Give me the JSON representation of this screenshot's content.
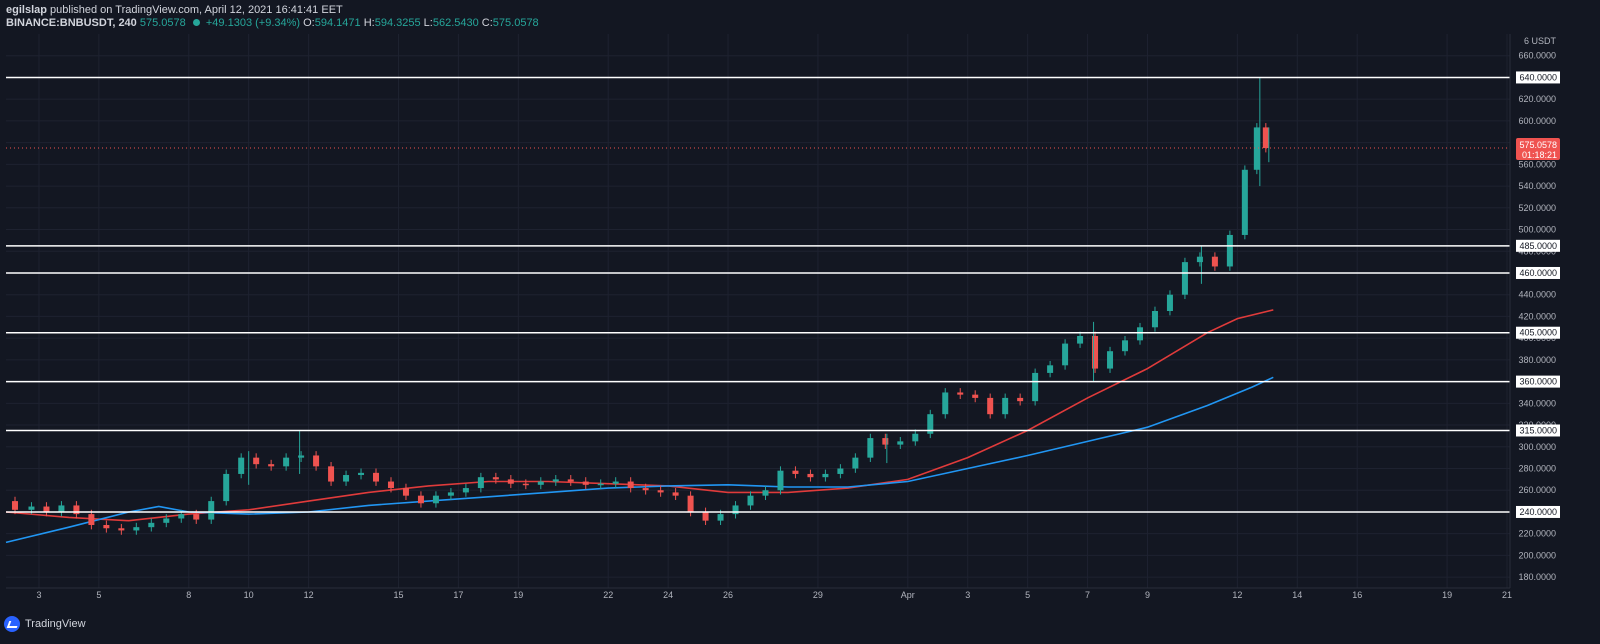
{
  "header": {
    "publisher_user": "egilslap",
    "publisher_text": "published on TradingView.com, April 12, 2021 16:41:41 EET",
    "symbol": "BINANCE:BNBUSDT, 240",
    "last": "575.0578",
    "change": "+49.1303 (+9.34%)",
    "o_label": "O:",
    "o_value": "594.1471",
    "h_label": "H:",
    "h_value": "594.3255",
    "l_label": "L:",
    "l_value": "562.5430",
    "c_label": "C:",
    "c_value": "575.0578"
  },
  "footer": {
    "brand": "TradingView"
  },
  "colors": {
    "background": "#131722",
    "up": "#26a69a",
    "down": "#ef5350",
    "ma_fast": "#e03b3b",
    "ma_slow": "#2196f3",
    "level_line": "#ffffff"
  },
  "chart_data": {
    "type": "candlestick",
    "yaxis_unit_label": "6 USDT",
    "ylim": [
      170,
      680
    ],
    "y_ticks": [
      180,
      200,
      220,
      240,
      260,
      280,
      300,
      320,
      340,
      360,
      380,
      400,
      420,
      440,
      460,
      480,
      500,
      520,
      540,
      560,
      580,
      600,
      620,
      640,
      660
    ],
    "x_ticks": [
      {
        "label": "3",
        "day": 3
      },
      {
        "label": "5",
        "day": 5
      },
      {
        "label": "8",
        "day": 8
      },
      {
        "label": "10",
        "day": 10
      },
      {
        "label": "12",
        "day": 12
      },
      {
        "label": "15",
        "day": 15
      },
      {
        "label": "17",
        "day": 17
      },
      {
        "label": "19",
        "day": 19
      },
      {
        "label": "22",
        "day": 22
      },
      {
        "label": "24",
        "day": 24
      },
      {
        "label": "26",
        "day": 26
      },
      {
        "label": "29",
        "day": 29
      },
      {
        "label": "Apr",
        "day": 32
      },
      {
        "label": "3",
        "day": 34
      },
      {
        "label": "5",
        "day": 36
      },
      {
        "label": "7",
        "day": 38
      },
      {
        "label": "9",
        "day": 40
      },
      {
        "label": "12",
        "day": 43
      },
      {
        "label": "14",
        "day": 45
      },
      {
        "label": "16",
        "day": 47
      },
      {
        "label": "19",
        "day": 50
      },
      {
        "label": "21",
        "day": 52
      }
    ],
    "x_range_days": [
      1.9,
      52.1
    ],
    "levels": [
      {
        "value": 640,
        "label": "640.0000"
      },
      {
        "value": 485,
        "label": "485.0000"
      },
      {
        "value": 460,
        "label": "460.0000"
      },
      {
        "value": 405,
        "label": "405.0000"
      },
      {
        "value": 360,
        "label": "360.0000"
      },
      {
        "value": 315,
        "label": "315.0000"
      },
      {
        "value": 240,
        "label": "240.0000"
      }
    ],
    "price_label": {
      "value": 575.0578,
      "label": "575.0578",
      "countdown": "01:18:21"
    },
    "price_path": [
      [
        1.9,
        250
      ],
      [
        2.5,
        242
      ],
      [
        3.0,
        245
      ],
      [
        3.5,
        240
      ],
      [
        4.0,
        246
      ],
      [
        4.5,
        238
      ],
      [
        5.0,
        228
      ],
      [
        5.5,
        225
      ],
      [
        6.0,
        223
      ],
      [
        6.5,
        226
      ],
      [
        7.0,
        230
      ],
      [
        7.5,
        234
      ],
      [
        8.0,
        238
      ],
      [
        8.5,
        233
      ],
      [
        9.0,
        250
      ],
      [
        9.5,
        275
      ],
      [
        10.0,
        290
      ],
      [
        10.5,
        284
      ],
      [
        11.0,
        282
      ],
      [
        11.5,
        290
      ],
      [
        12.0,
        292
      ],
      [
        12.5,
        282
      ],
      [
        13.0,
        268
      ],
      [
        13.5,
        274
      ],
      [
        14.0,
        276
      ],
      [
        14.5,
        268
      ],
      [
        15.0,
        262
      ],
      [
        15.5,
        255
      ],
      [
        16.0,
        248
      ],
      [
        16.5,
        255
      ],
      [
        17.0,
        258
      ],
      [
        17.5,
        262
      ],
      [
        18.0,
        272
      ],
      [
        18.5,
        270
      ],
      [
        19.0,
        266
      ],
      [
        19.5,
        265
      ],
      [
        20.0,
        268
      ],
      [
        20.5,
        270
      ],
      [
        21.0,
        268
      ],
      [
        21.5,
        265
      ],
      [
        22.0,
        266
      ],
      [
        22.5,
        268
      ],
      [
        23.0,
        262
      ],
      [
        23.5,
        260
      ],
      [
        24.0,
        258
      ],
      [
        24.5,
        255
      ],
      [
        25.0,
        240
      ],
      [
        25.5,
        232
      ],
      [
        26.0,
        238
      ],
      [
        26.5,
        246
      ],
      [
        27.0,
        255
      ],
      [
        27.5,
        260
      ],
      [
        28.0,
        278
      ],
      [
        28.5,
        275
      ],
      [
        29.0,
        272
      ],
      [
        29.5,
        275
      ],
      [
        30.0,
        280
      ],
      [
        30.5,
        290
      ],
      [
        31.0,
        308
      ],
      [
        31.5,
        302
      ],
      [
        32.0,
        305
      ],
      [
        32.5,
        312
      ],
      [
        33.0,
        330
      ],
      [
        33.5,
        350
      ],
      [
        34.0,
        348
      ],
      [
        34.5,
        345
      ],
      [
        35.0,
        330
      ],
      [
        35.5,
        345
      ],
      [
        36.0,
        342
      ],
      [
        36.5,
        368
      ],
      [
        37.0,
        375
      ],
      [
        37.5,
        395
      ],
      [
        38.0,
        402
      ],
      [
        38.5,
        372
      ],
      [
        39.0,
        388
      ],
      [
        39.5,
        398
      ],
      [
        40.0,
        410
      ],
      [
        40.5,
        425
      ],
      [
        41.0,
        440
      ],
      [
        41.5,
        470
      ],
      [
        42.0,
        475
      ],
      [
        42.5,
        466
      ],
      [
        43.0,
        495
      ],
      [
        43.5,
        555
      ],
      [
        43.8,
        594
      ],
      [
        44.1,
        575
      ]
    ],
    "wicks": [
      {
        "day": 10.0,
        "high": 296,
        "low": 265
      },
      {
        "day": 11.7,
        "high": 315,
        "low": 275
      },
      {
        "day": 31.3,
        "high": 312,
        "low": 285
      },
      {
        "day": 38.2,
        "high": 415,
        "low": 360
      },
      {
        "day": 41.8,
        "high": 485,
        "low": 450
      },
      {
        "day": 43.75,
        "high": 640,
        "low": 540
      },
      {
        "day": 44.05,
        "high": 594,
        "low": 562
      }
    ],
    "series": [
      {
        "color": "#e03b3b",
        "points": [
          [
            1.9,
            240
          ],
          [
            4,
            235
          ],
          [
            6,
            232
          ],
          [
            8,
            238
          ],
          [
            10,
            242
          ],
          [
            12,
            250
          ],
          [
            14,
            258
          ],
          [
            16,
            264
          ],
          [
            18,
            268
          ],
          [
            20,
            268
          ],
          [
            22,
            266
          ],
          [
            24,
            264
          ],
          [
            26,
            258
          ],
          [
            28,
            258
          ],
          [
            30,
            262
          ],
          [
            32,
            270
          ],
          [
            34,
            290
          ],
          [
            36,
            315
          ],
          [
            38,
            345
          ],
          [
            40,
            372
          ],
          [
            42,
            405
          ],
          [
            43,
            418
          ],
          [
            44.2,
            426
          ]
        ]
      },
      {
        "color": "#2196f3",
        "points": [
          [
            1.9,
            212
          ],
          [
            4,
            226
          ],
          [
            6,
            240
          ],
          [
            7,
            245
          ],
          [
            8,
            240
          ],
          [
            10,
            238
          ],
          [
            12,
            240
          ],
          [
            14,
            246
          ],
          [
            16,
            250
          ],
          [
            18,
            254
          ],
          [
            20,
            258
          ],
          [
            22,
            262
          ],
          [
            24,
            264
          ],
          [
            26,
            265
          ],
          [
            28,
            263
          ],
          [
            30,
            263
          ],
          [
            32,
            268
          ],
          [
            34,
            280
          ],
          [
            36,
            292
          ],
          [
            38,
            305
          ],
          [
            40,
            318
          ],
          [
            42,
            338
          ],
          [
            43.5,
            355
          ],
          [
            44.2,
            364
          ]
        ]
      }
    ]
  }
}
